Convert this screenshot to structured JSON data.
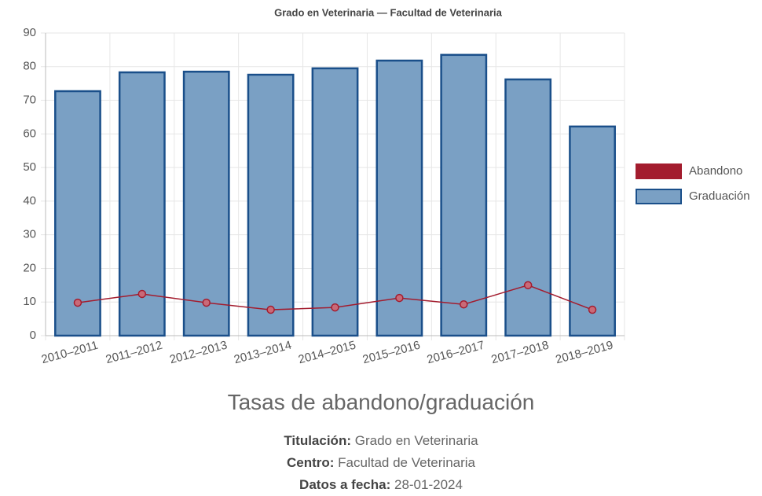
{
  "chart_data": {
    "type": "bar",
    "title": "Grado en Veterinaria — Facultad de Veterinaria",
    "categories": [
      "2010–2011",
      "2011–2012",
      "2012–2013",
      "2013–2014",
      "2014–2015",
      "2015–2016",
      "2016–2017",
      "2017–2018",
      "2018–2019"
    ],
    "series": [
      {
        "name": "Abandono",
        "type": "line",
        "color": "#a31c2e",
        "values": [
          9.8,
          12.4,
          9.8,
          7.7,
          8.4,
          11.2,
          9.3,
          15.0,
          7.7
        ]
      },
      {
        "name": "Graduación",
        "type": "bar",
        "color": "#7aa0c4",
        "values": [
          72.7,
          78.3,
          78.5,
          77.6,
          79.5,
          81.8,
          83.5,
          76.2,
          62.2
        ]
      }
    ],
    "ylim": [
      0,
      90
    ],
    "yticks": [
      0,
      10,
      20,
      30,
      40,
      50,
      60,
      70,
      80,
      90
    ],
    "grid": true,
    "legend": "right"
  },
  "caption": {
    "title": "Tasas de abandono/graduación",
    "info": [
      {
        "label": "Titulación:",
        "value": "Grado en Veterinaria"
      },
      {
        "label": "Centro:",
        "value": "Facultad de Veterinaria"
      },
      {
        "label": "Datos a fecha:",
        "value": "28-01-2024"
      }
    ]
  }
}
